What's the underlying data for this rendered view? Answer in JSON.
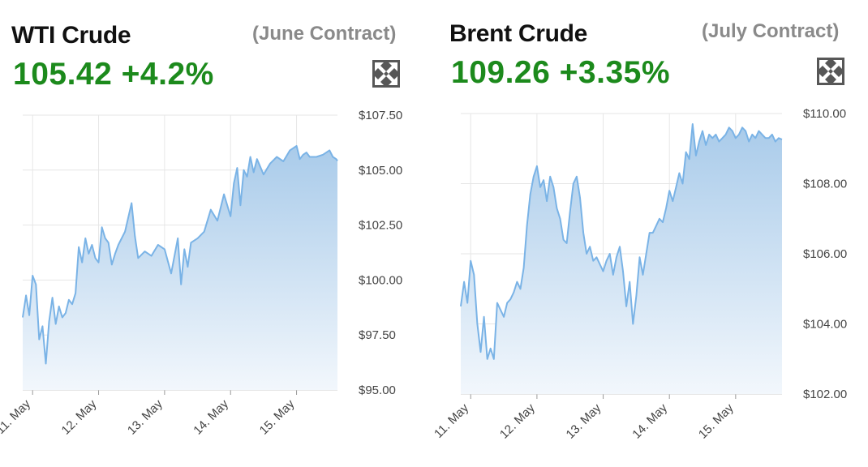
{
  "panels": [
    {
      "title": "WTI Crude",
      "contract": "(June Contract)",
      "price": "105.42",
      "change": "+4.2%",
      "expand_icon": "expand-arrows-icon"
    },
    {
      "title": "Brent Crude",
      "contract": "(July Contract)",
      "price": "109.26",
      "change": "+3.35%",
      "expand_icon": "expand-arrows-icon"
    }
  ],
  "colors": {
    "line": "#7ab3e6",
    "fill_top": "#a9cbea",
    "fill_bottom": "#f2f7fc",
    "price_green": "#1c8a1c",
    "grid": "#e6e6e6"
  },
  "chart_data": [
    {
      "type": "area",
      "title": "WTI Crude",
      "x_tick_labels": [
        "11. May",
        "12. May",
        "13. May",
        "14. May",
        "15. May"
      ],
      "y_tick_labels": [
        "$107.50",
        "$105.00",
        "$102.50",
        "$100.00",
        "$97.50",
        "$95.00"
      ],
      "ylim": [
        95,
        107.5
      ],
      "y_ticks": [
        107.5,
        105,
        102.5,
        100,
        97.5,
        95
      ],
      "xlim": [
        10.85,
        15.62
      ],
      "grid": true,
      "series": [
        {
          "x": [
            10.85,
            10.9,
            10.95,
            11.0,
            11.05,
            11.1,
            11.15,
            11.2,
            11.25,
            11.3,
            11.35,
            11.4,
            11.45,
            11.5,
            11.55,
            11.6,
            11.65,
            11.7,
            11.75,
            11.8,
            11.85,
            11.9,
            11.95,
            12.0,
            12.05,
            12.1,
            12.15,
            12.2,
            12.25,
            12.3,
            12.4,
            12.5,
            12.55,
            12.6,
            12.7,
            12.8,
            12.9,
            13.0,
            13.1,
            13.2,
            13.25,
            13.3,
            13.35,
            13.4,
            13.5,
            13.6,
            13.7,
            13.8,
            13.9,
            14.0,
            14.05,
            14.1,
            14.15,
            14.2,
            14.25,
            14.3,
            14.35,
            14.4,
            14.5,
            14.6,
            14.7,
            14.8,
            14.9,
            15.0,
            15.05,
            15.1,
            15.15,
            15.2,
            15.3,
            15.4,
            15.5,
            15.55,
            15.6,
            15.62
          ],
          "y": [
            98.3,
            99.3,
            98.4,
            100.2,
            99.8,
            97.3,
            97.9,
            96.2,
            98.1,
            99.2,
            98.0,
            98.8,
            98.3,
            98.5,
            99.1,
            98.9,
            99.4,
            101.5,
            100.8,
            101.9,
            101.2,
            101.6,
            101.0,
            100.8,
            102.4,
            101.9,
            101.7,
            100.7,
            101.2,
            101.6,
            102.2,
            103.5,
            102.0,
            101.0,
            101.3,
            101.1,
            101.6,
            101.4,
            100.3,
            101.9,
            99.8,
            101.4,
            100.6,
            101.7,
            101.9,
            102.2,
            103.2,
            102.7,
            103.9,
            102.9,
            104.4,
            105.1,
            103.4,
            105.0,
            104.7,
            105.6,
            104.9,
            105.5,
            104.8,
            105.3,
            105.6,
            105.4,
            105.9,
            106.1,
            105.5,
            105.7,
            105.8,
            105.6,
            105.6,
            105.7,
            105.9,
            105.6,
            105.5,
            105.42
          ]
        }
      ]
    },
    {
      "type": "area",
      "title": "Brent Crude",
      "x_tick_labels": [
        "11. May",
        "12. May",
        "13. May",
        "14. May",
        "15. May"
      ],
      "y_tick_labels": [
        "$110.00",
        "$108.00",
        "$106.00",
        "$104.00",
        "$102.00"
      ],
      "ylim": [
        102,
        110
      ],
      "y_ticks": [
        110,
        108,
        106,
        104,
        102
      ],
      "xlim": [
        10.85,
        15.7
      ],
      "grid": true,
      "series": [
        {
          "x": [
            10.85,
            10.9,
            10.95,
            11.0,
            11.05,
            11.1,
            11.15,
            11.2,
            11.25,
            11.3,
            11.35,
            11.4,
            11.45,
            11.5,
            11.55,
            11.6,
            11.65,
            11.7,
            11.75,
            11.8,
            11.85,
            11.9,
            11.95,
            12.0,
            12.05,
            12.1,
            12.15,
            12.2,
            12.25,
            12.3,
            12.35,
            12.4,
            12.45,
            12.5,
            12.55,
            12.6,
            12.65,
            12.7,
            12.75,
            12.8,
            12.85,
            12.9,
            12.95,
            13.0,
            13.05,
            13.1,
            13.15,
            13.2,
            13.25,
            13.3,
            13.35,
            13.4,
            13.45,
            13.5,
            13.55,
            13.6,
            13.65,
            13.7,
            13.75,
            13.8,
            13.85,
            13.9,
            13.95,
            14.0,
            14.05,
            14.1,
            14.15,
            14.2,
            14.25,
            14.3,
            14.35,
            14.4,
            14.45,
            14.5,
            14.55,
            14.6,
            14.65,
            14.7,
            14.75,
            14.8,
            14.85,
            14.9,
            14.95,
            15.0,
            15.05,
            15.1,
            15.15,
            15.2,
            15.25,
            15.3,
            15.35,
            15.4,
            15.45,
            15.5,
            15.55,
            15.6,
            15.65,
            15.7
          ],
          "y": [
            104.5,
            105.2,
            104.6,
            105.8,
            105.4,
            104.0,
            103.2,
            104.2,
            103.0,
            103.3,
            103.0,
            104.6,
            104.4,
            104.2,
            104.6,
            104.7,
            104.9,
            105.2,
            105.0,
            105.6,
            106.8,
            107.7,
            108.2,
            108.5,
            107.9,
            108.1,
            107.5,
            108.2,
            107.9,
            107.3,
            107.0,
            106.4,
            106.3,
            107.2,
            108.0,
            108.2,
            107.6,
            106.6,
            106.0,
            106.2,
            105.8,
            105.9,
            105.7,
            105.5,
            105.8,
            106.0,
            105.4,
            105.9,
            106.2,
            105.5,
            104.5,
            105.2,
            104.0,
            104.8,
            105.9,
            105.4,
            106.0,
            106.6,
            106.6,
            106.8,
            107.0,
            106.9,
            107.3,
            107.8,
            107.5,
            107.9,
            108.3,
            108.0,
            108.9,
            108.7,
            109.7,
            108.8,
            109.2,
            109.5,
            109.1,
            109.4,
            109.3,
            109.4,
            109.2,
            109.3,
            109.4,
            109.6,
            109.5,
            109.3,
            109.4,
            109.6,
            109.5,
            109.2,
            109.4,
            109.3,
            109.5,
            109.4,
            109.3,
            109.3,
            109.4,
            109.2,
            109.3,
            109.26
          ]
        }
      ]
    }
  ]
}
